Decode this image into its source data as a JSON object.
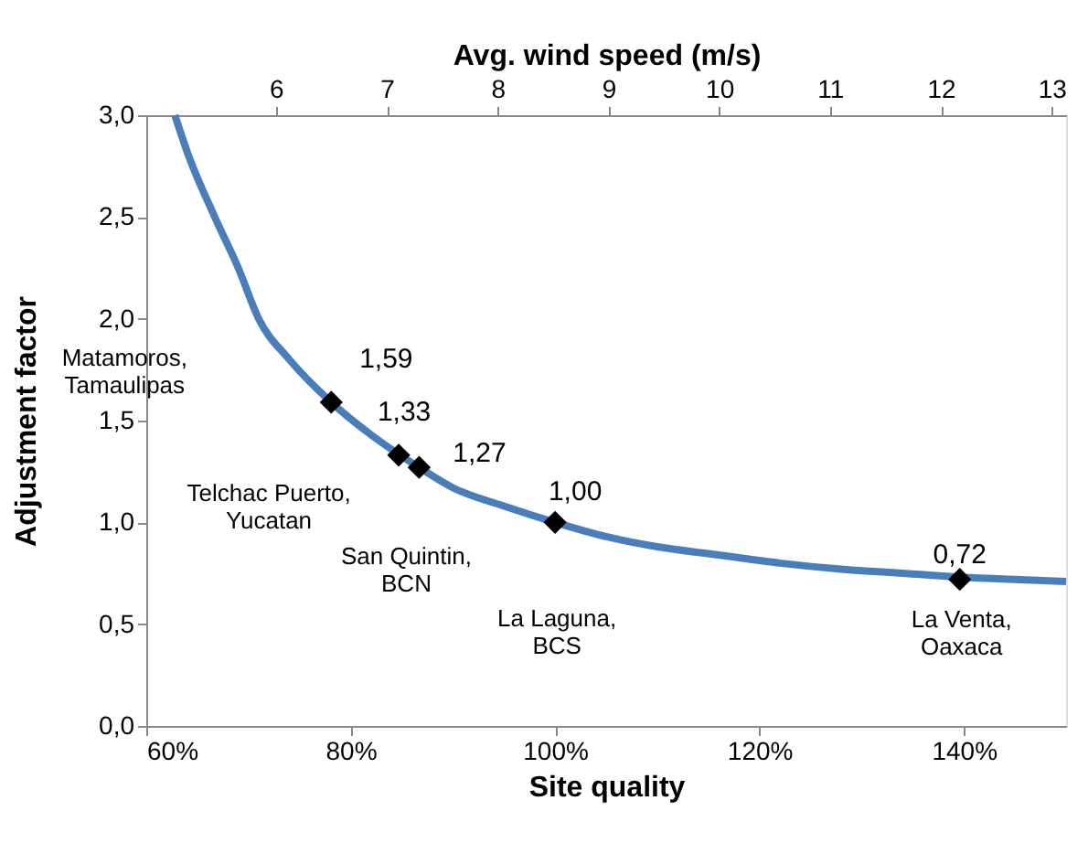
{
  "chart_data": {
    "type": "line",
    "xlabel": "Site quality",
    "ylabel": "Adjustment factor",
    "x2label": "Avg. wind speed (m/s)",
    "xlim": [
      60,
      150
    ],
    "xticks": [
      {
        "value": 60,
        "label": "60%"
      },
      {
        "value": 80,
        "label": "80%"
      },
      {
        "value": 100,
        "label": "100%"
      },
      {
        "value": 120,
        "label": "120%"
      },
      {
        "value": 140,
        "label": "140%"
      }
    ],
    "x2lim": [
      4.83,
      13.13
    ],
    "x2ticks": [
      6,
      7,
      8,
      9,
      10,
      11,
      12,
      13
    ],
    "ylim": [
      0,
      3
    ],
    "yticks": [
      {
        "value": 0,
        "label": "0,0"
      },
      {
        "value": 0.5,
        "label": "0,5"
      },
      {
        "value": 1,
        "label": "1,0"
      },
      {
        "value": 1.5,
        "label": "1,5"
      },
      {
        "value": 2,
        "label": "2,0"
      },
      {
        "value": 2.5,
        "label": "2,5"
      },
      {
        "value": 3,
        "label": "3,0"
      }
    ],
    "grid": false,
    "series": [
      {
        "type": "line",
        "color": "#4a7ebb",
        "line_style": "solid",
        "marker": "none",
        "x": [
          62.8,
          64,
          66.7,
          69,
          71,
          74,
          78.1,
          82,
          86.7,
          90,
          95,
          100,
          105,
          110,
          116,
          122,
          128,
          134,
          140,
          145,
          150
        ],
        "values": [
          3.0,
          2.82,
          2.5,
          2.25,
          2.0,
          1.8,
          1.59,
          1.43,
          1.27,
          1.17,
          1.08,
          1.0,
          0.93,
          0.88,
          0.84,
          0.8,
          0.77,
          0.75,
          0.73,
          0.72,
          0.71
        ]
      },
      {
        "type": "scatter",
        "color": "#000000",
        "marker": "diamond",
        "x": [
          78.1,
          84.7,
          86.7,
          100,
          139.6
        ],
        "values": [
          1.59,
          1.33,
          1.27,
          1.0,
          0.72
        ],
        "value_labels": [
          "1,59",
          "1,33",
          "1,27",
          "1,00",
          "0,72"
        ]
      }
    ],
    "annotations": [
      "Matamoros,\nTamaulipas",
      "Telchac Puerto,\nYucatan",
      "San Quintin,\nBCN",
      "La Laguna,\nBCS",
      "La Venta,\nOaxaca"
    ]
  }
}
